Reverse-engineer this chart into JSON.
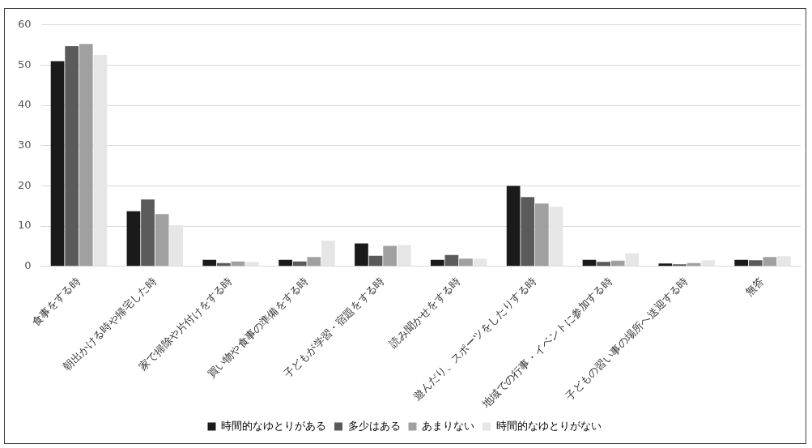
{
  "chart_data": {
    "type": "bar",
    "categories": [
      "食事をする時",
      "朝出かける時や帰宅した時",
      "家で掃除や片付けをする時",
      "買い物や食事の準備をする時",
      "子どもが学習・宿題をする時",
      "読み聞かせをする時",
      "遊んだり、スポーツをしたりする時",
      "地域での行事・イベントに参加する時",
      "子どもの習い事の場所へ送迎する時",
      "無答"
    ],
    "series": [
      {
        "name": "時間的なゆとりがある",
        "color": "#1a1a1a",
        "values": [
          51.0,
          13.7,
          1.6,
          1.6,
          5.7,
          1.6,
          20.0,
          1.6,
          0.7,
          1.6
        ]
      },
      {
        "name": "多少はある",
        "color": "#5a5a5a",
        "values": [
          54.7,
          16.6,
          0.8,
          1.2,
          2.6,
          2.8,
          17.2,
          1.1,
          0.5,
          1.5
        ]
      },
      {
        "name": "あまりない",
        "color": "#a0a0a0",
        "values": [
          55.3,
          13.0,
          1.2,
          2.3,
          5.1,
          1.9,
          15.6,
          1.4,
          0.8,
          2.3
        ]
      },
      {
        "name": "時間的なゆとりがない",
        "color": "#e6e6e6",
        "values": [
          52.5,
          10.2,
          1.1,
          6.4,
          5.3,
          1.9,
          14.8,
          3.2,
          1.5,
          2.5
        ]
      }
    ],
    "ylim": [
      0,
      60
    ],
    "yticks": [
      0,
      10,
      20,
      30,
      40,
      50,
      60
    ],
    "grid": "y",
    "legend": "bottom"
  }
}
